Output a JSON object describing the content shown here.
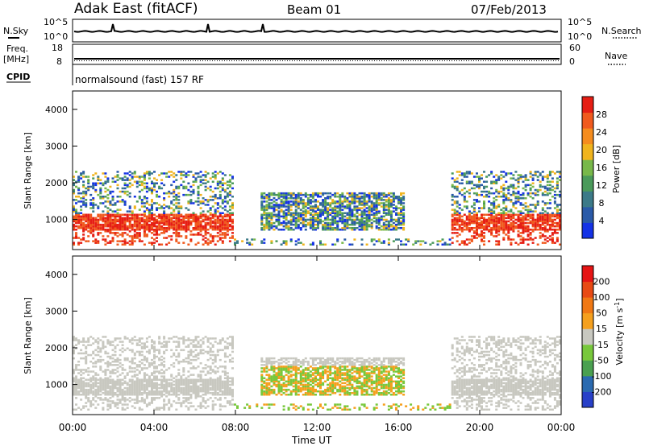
{
  "header": {
    "station": "Adak East (fitACF)",
    "beam": "Beam 01",
    "date": "07/Feb/2013"
  },
  "status_panel": {
    "nsky_label": "N.Sky",
    "nsky_ticks": [
      "10^5",
      "10^0"
    ],
    "nsearch_label": "N.Search",
    "nsearch_ticks": [
      "10^5",
      "10^0"
    ],
    "freq_label_1": "Freq.",
    "freq_label_2": "[MHz]",
    "freq_ticks": [
      "18",
      "8"
    ],
    "nave_label": "Nave",
    "nave_ticks": [
      "60",
      "0"
    ],
    "cpid_label": "CPID",
    "cpid_value": "normalsound (fast) 157 RF"
  },
  "chart_data": [
    {
      "type": "heatmap",
      "name": "power",
      "ylabel": "Slant Range [km]",
      "xlabel": "Time UT",
      "ylim": [
        180,
        4500
      ],
      "y_ticks": [
        "1000",
        "2000",
        "3000",
        "4000"
      ],
      "x_ticks": [
        "00:00",
        "04:00",
        "08:00",
        "12:00",
        "16:00",
        "20:00",
        "00:00"
      ],
      "colorbar_label": "Power [dB]",
      "colorbar_ticks": [
        "4",
        "8",
        "12",
        "16",
        "20",
        "24",
        "28"
      ],
      "colorbar_colors": [
        "#1432e6",
        "#2a5aa8",
        "#3c7a88",
        "#4a9a5a",
        "#78b84a",
        "#f0b41e",
        "#f58c1e",
        "#f05a1e",
        "#e61e14"
      ]
    },
    {
      "type": "heatmap",
      "name": "velocity",
      "ylabel": "Slant Range [km]",
      "xlabel": "Time UT",
      "ylim": [
        180,
        4500
      ],
      "y_ticks": [
        "1000",
        "2000",
        "3000",
        "4000"
      ],
      "x_ticks": [
        "00:00",
        "04:00",
        "08:00",
        "12:00",
        "16:00",
        "20:00",
        "00:00"
      ],
      "colorbar_label": "Velocity [m s",
      "colorbar_label_sup": "-1",
      "colorbar_ticks": [
        "200",
        "100",
        "50",
        "15",
        "-15",
        "-50",
        "-100",
        "-200"
      ],
      "colorbar_colors": [
        "#2840c8",
        "#2a6ab0",
        "#4aa050",
        "#78c83c",
        "#c8c8c0",
        "#f5a01e",
        "#f07814",
        "#e84a14",
        "#e61414"
      ]
    }
  ]
}
